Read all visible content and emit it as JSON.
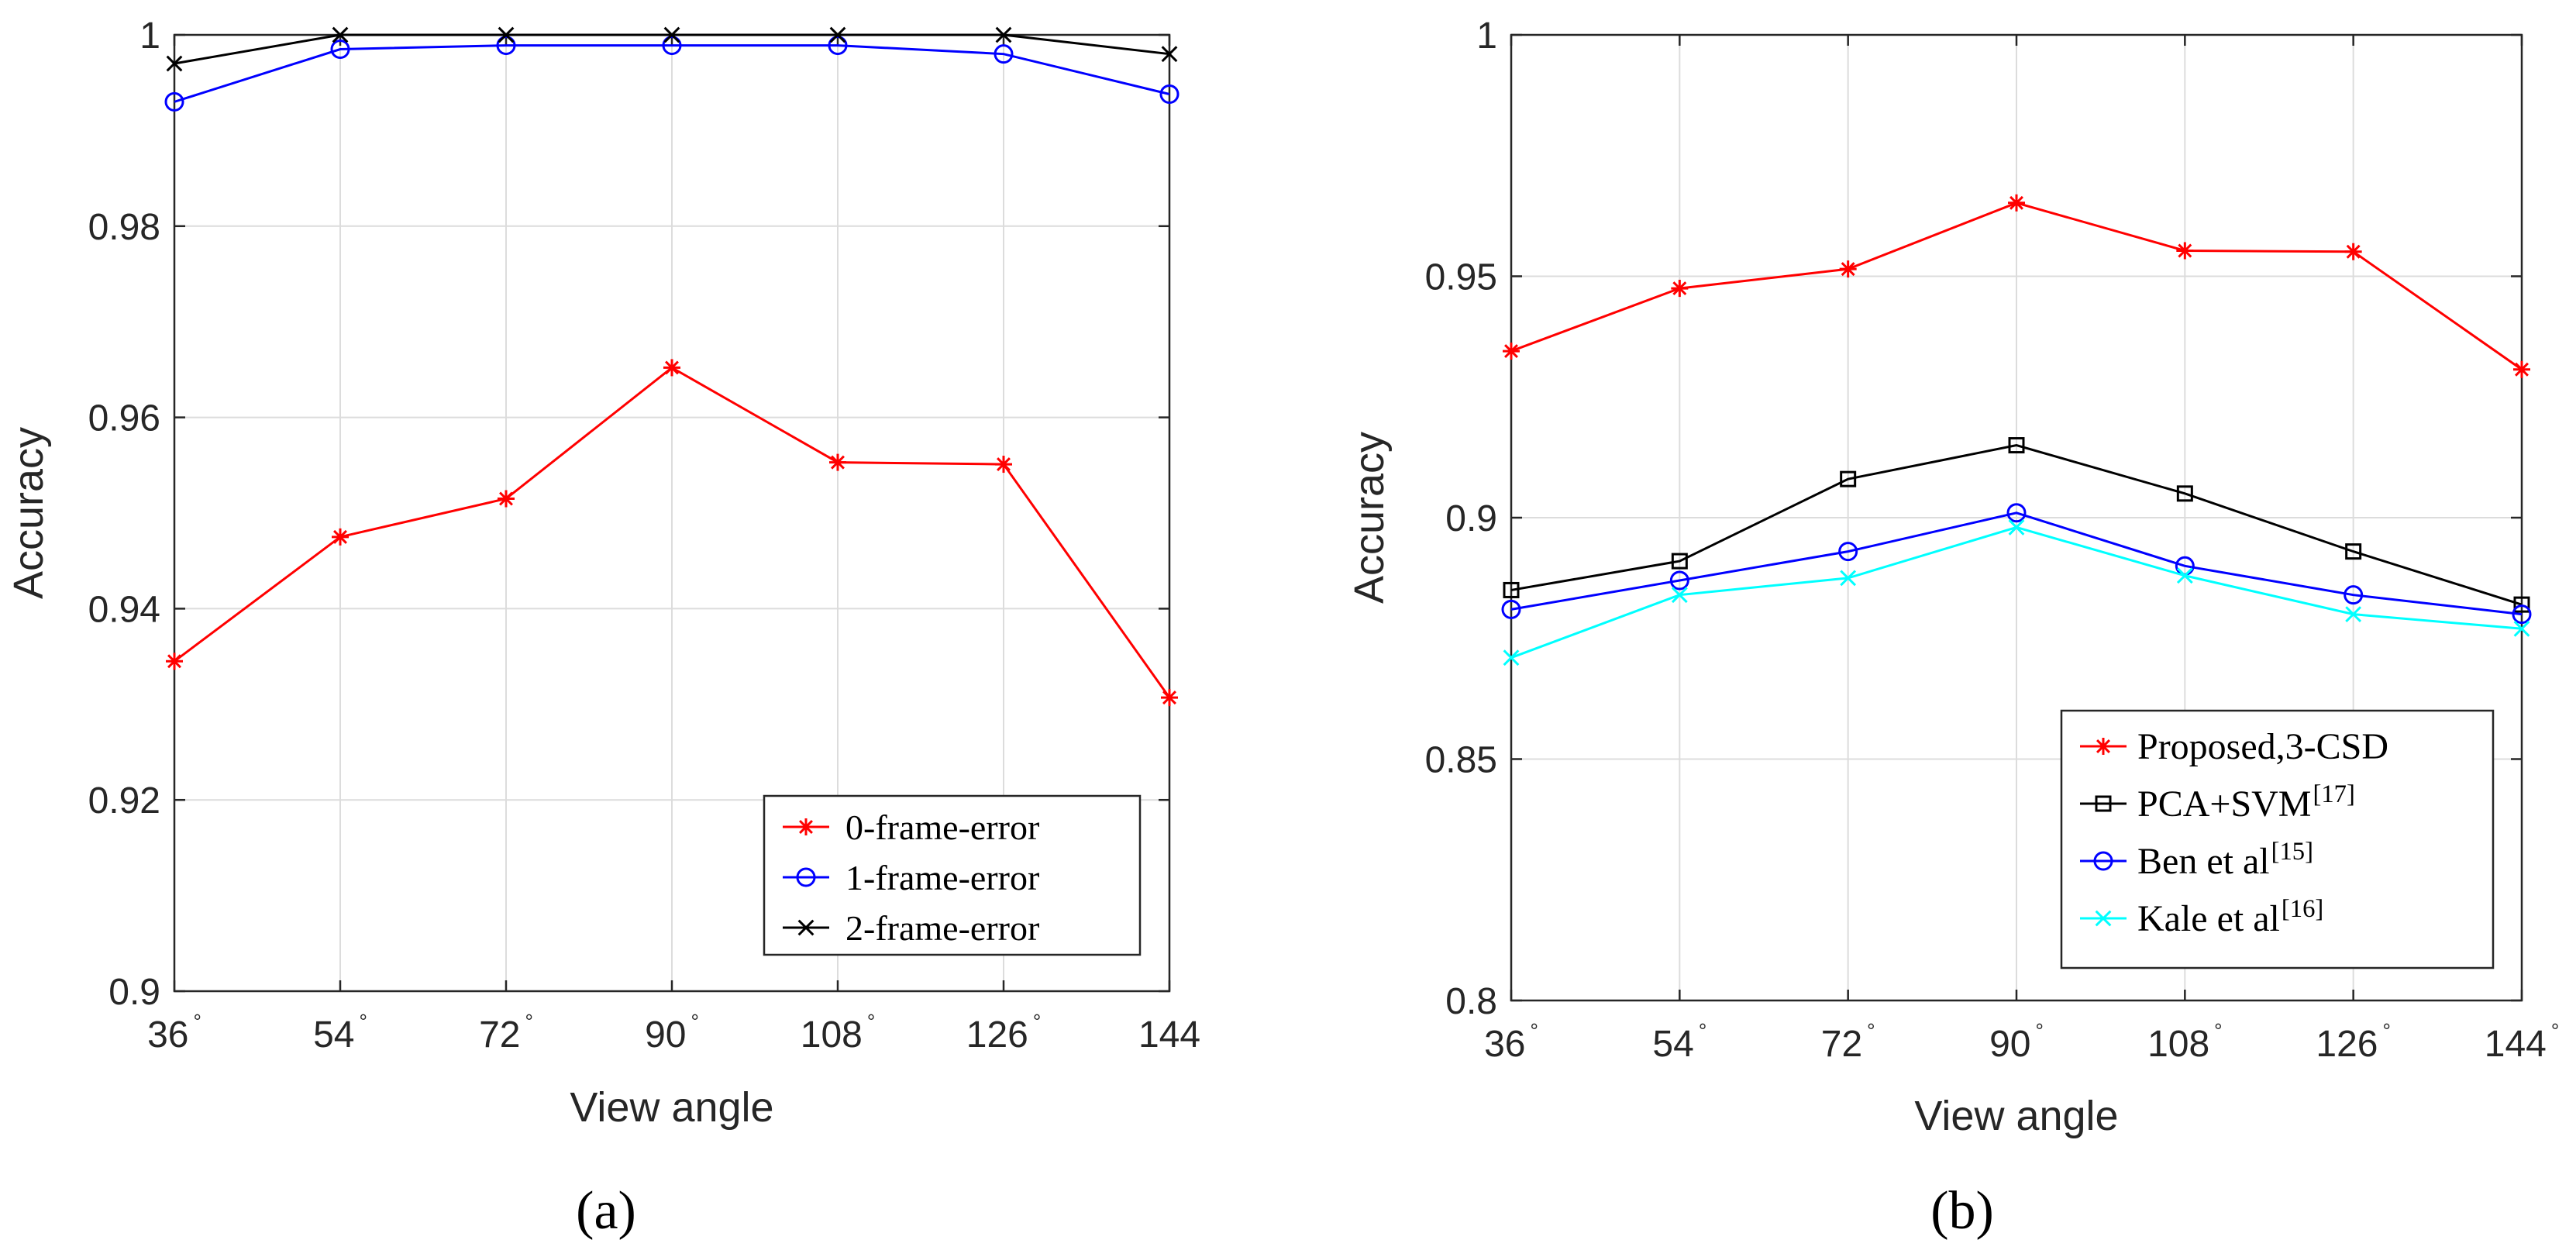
{
  "chart_data": [
    {
      "type": "line",
      "x": [
        36,
        54,
        72,
        90,
        108,
        126,
        144
      ],
      "tick_labels": [
        "36",
        "54",
        "72",
        "90",
        "108",
        "126",
        "144"
      ],
      "tick_degree": [
        true,
        true,
        true,
        true,
        true,
        true,
        false
      ],
      "xlabel": "View angle",
      "ylabel": "Accuracy",
      "ylim": [
        0.9,
        1.0
      ],
      "yticks": [
        0.9,
        0.92,
        0.94,
        0.96,
        0.98,
        1.0
      ],
      "ytick_labels": [
        "0.9",
        "0.92",
        "0.94",
        "0.96",
        "0.98",
        "1"
      ],
      "grid": true,
      "legend_position": "bottom-right",
      "caption": "(a)",
      "series": [
        {
          "name": "0-frame-error",
          "color": "#ff0000",
          "marker": "asterisk",
          "values": [
            0.9345,
            0.9475,
            0.9515,
            0.9652,
            0.9553,
            0.9551,
            0.9307
          ]
        },
        {
          "name": "1-frame-error",
          "color": "#0000ff",
          "marker": "circle",
          "values": [
            0.993,
            0.9985,
            0.9989,
            0.9989,
            0.9989,
            0.998,
            0.9938
          ]
        },
        {
          "name": "2-frame-error",
          "color": "#000000",
          "marker": "x",
          "values": [
            0.997,
            1.0,
            1.0,
            1.0,
            1.0,
            1.0,
            0.998
          ]
        }
      ]
    },
    {
      "type": "line",
      "x": [
        36,
        54,
        72,
        90,
        108,
        126,
        144
      ],
      "tick_labels": [
        "36",
        "54",
        "72",
        "90",
        "108",
        "126",
        "144"
      ],
      "tick_degree": [
        true,
        true,
        true,
        true,
        true,
        true,
        true
      ],
      "xlabel": "View angle",
      "ylabel": "Accuracy",
      "ylim": [
        0.8,
        1.0
      ],
      "yticks": [
        0.8,
        0.85,
        0.9,
        0.95,
        1.0
      ],
      "ytick_labels": [
        "0.8",
        "0.85",
        "0.9",
        "0.95",
        "1"
      ],
      "grid": true,
      "legend_position": "bottom-right",
      "caption": "(b)",
      "series": [
        {
          "name": "Proposed,3-CSD",
          "ref": "",
          "color": "#ff0000",
          "marker": "asterisk",
          "values": [
            0.9345,
            0.9475,
            0.9515,
            0.9652,
            0.9553,
            0.9551,
            0.9307
          ]
        },
        {
          "name": "PCA+SVM",
          "ref": "[17]",
          "color": "#000000",
          "marker": "square",
          "values": [
            0.885,
            0.891,
            0.908,
            0.915,
            0.905,
            0.893,
            0.882
          ]
        },
        {
          "name": "Ben et al",
          "ref": "[15]",
          "color": "#0000ff",
          "marker": "circle",
          "values": [
            0.881,
            0.887,
            0.893,
            0.901,
            0.89,
            0.884,
            0.88
          ]
        },
        {
          "name": "Kale et al",
          "ref": "[16]",
          "color": "#00ffff",
          "marker": "x",
          "values": [
            0.871,
            0.884,
            0.8875,
            0.898,
            0.888,
            0.88,
            0.877
          ]
        }
      ]
    }
  ]
}
